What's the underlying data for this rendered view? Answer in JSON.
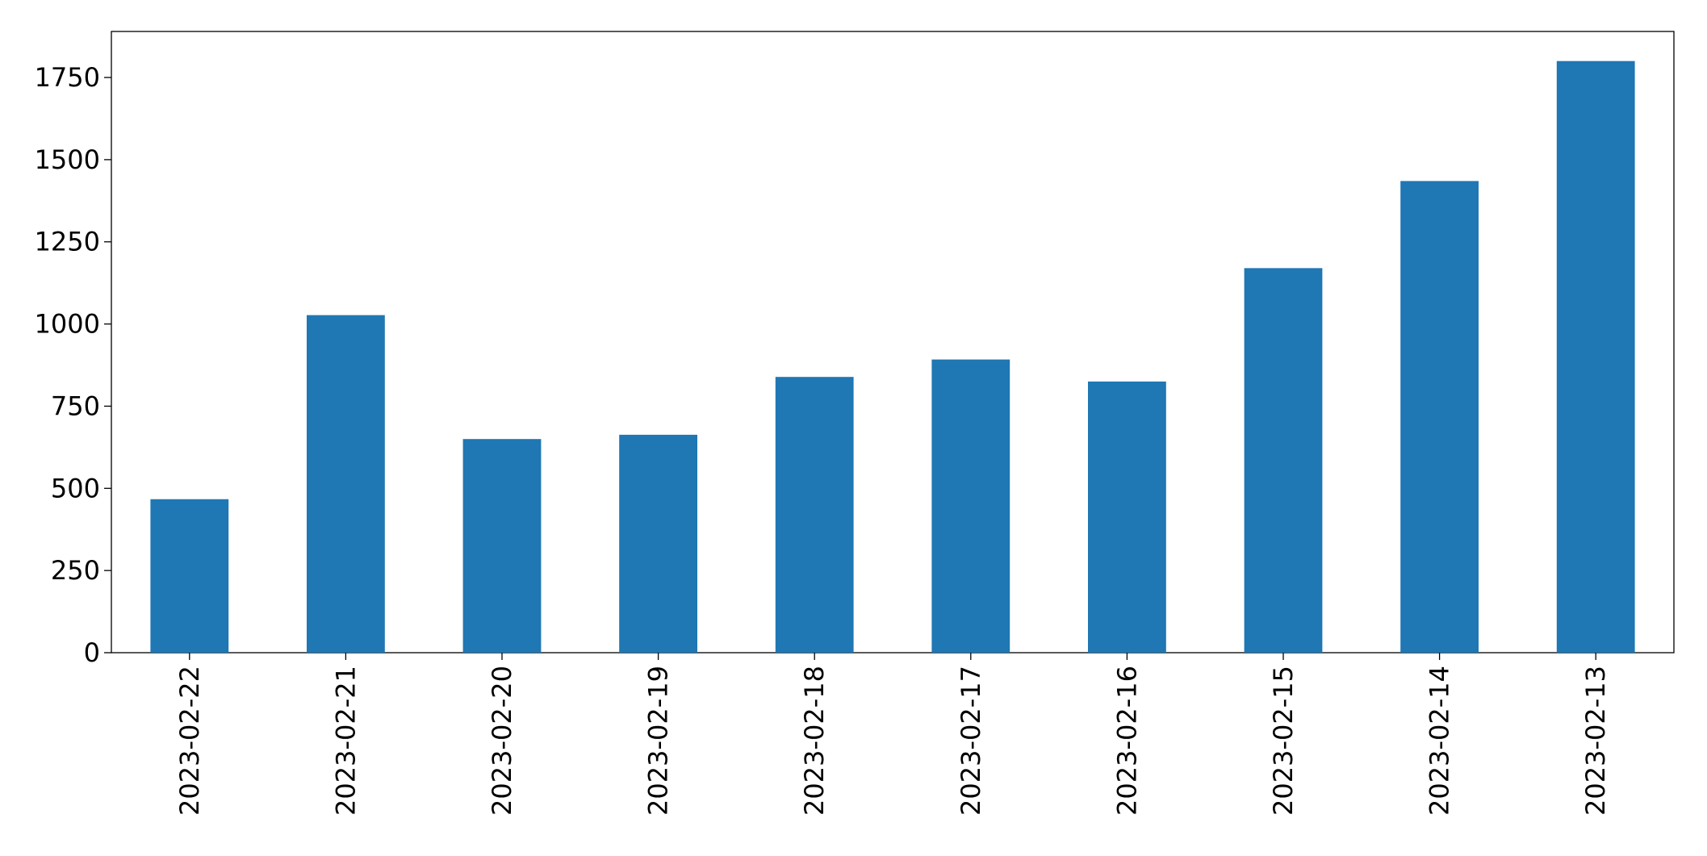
{
  "chart_data": {
    "type": "bar",
    "categories": [
      "2023-02-22",
      "2023-02-21",
      "2023-02-20",
      "2023-02-19",
      "2023-02-18",
      "2023-02-17",
      "2023-02-16",
      "2023-02-15",
      "2023-02-14",
      "2023-02-13"
    ],
    "values": [
      467,
      1027,
      650,
      663,
      839,
      892,
      825,
      1170,
      1435,
      1800
    ],
    "color": "#1f77b4",
    "ylim": [
      0,
      1890
    ],
    "yticks": [
      0,
      250,
      500,
      750,
      1000,
      1250,
      1500,
      1750
    ],
    "grid": false
  }
}
